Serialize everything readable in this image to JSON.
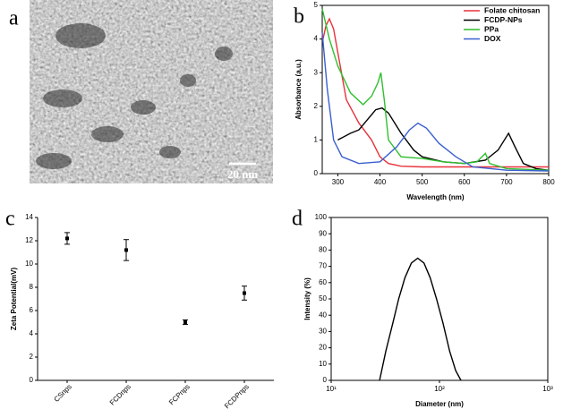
{
  "image_panel": {
    "panel_label": "a",
    "scale_label": "20 nm"
  },
  "chart_data": [
    {
      "type": "line",
      "panel_label": "b",
      "x_label": "Wavelength (nm)",
      "y_label": "Absorbance (a.u.)",
      "xlim": [
        263,
        800
      ],
      "xticks": [
        300,
        400,
        500,
        600,
        700,
        800
      ],
      "ylim": [
        0,
        5
      ],
      "yticks": [
        0,
        1,
        2,
        3,
        4,
        5
      ],
      "legend": "upper right",
      "series": [
        {
          "name": "Folate chitosan",
          "color": "#e8313a",
          "x": [
            265,
            272,
            280,
            290,
            300,
            320,
            350,
            380,
            400,
            420,
            450,
            500,
            600,
            700,
            800
          ],
          "values": [
            4.0,
            4.4,
            4.6,
            4.3,
            3.6,
            2.2,
            1.5,
            1.0,
            0.5,
            0.3,
            0.22,
            0.2,
            0.2,
            0.2,
            0.2
          ]
        },
        {
          "name": "FCDP-NPs",
          "color": "#000000",
          "x": [
            300,
            330,
            350,
            370,
            390,
            405,
            420,
            450,
            480,
            500,
            550,
            600,
            650,
            680,
            705,
            720,
            740,
            770,
            800
          ],
          "values": [
            1.0,
            1.2,
            1.3,
            1.6,
            1.9,
            1.95,
            1.8,
            1.2,
            0.7,
            0.5,
            0.35,
            0.3,
            0.4,
            0.7,
            1.2,
            0.8,
            0.3,
            0.15,
            0.1
          ]
        },
        {
          "name": "PPa",
          "color": "#2fc02f",
          "x": [
            263,
            280,
            300,
            330,
            360,
            380,
            395,
            402,
            410,
            420,
            450,
            500,
            550,
            600,
            630,
            650,
            660,
            700,
            800
          ],
          "values": [
            4.9,
            4.0,
            3.2,
            2.4,
            2.05,
            2.3,
            2.7,
            3.0,
            2.2,
            1.0,
            0.5,
            0.45,
            0.35,
            0.3,
            0.35,
            0.6,
            0.3,
            0.15,
            0.1
          ]
        },
        {
          "name": "DOX",
          "color": "#3a5fd0",
          "x": [
            263,
            275,
            290,
            310,
            350,
            400,
            440,
            470,
            490,
            510,
            540,
            580,
            620,
            700,
            800
          ],
          "values": [
            4.2,
            2.5,
            1.0,
            0.5,
            0.3,
            0.35,
            0.8,
            1.3,
            1.5,
            1.35,
            0.9,
            0.5,
            0.2,
            0.1,
            0.08
          ]
        }
      ]
    },
    {
      "type": "errorbar",
      "panel_label": "c",
      "y_label": "Zeta Potential(mV)",
      "categories": [
        "CSnps",
        "FCDnps",
        "FCPnps",
        "FCDPnps"
      ],
      "values": [
        12.2,
        11.2,
        5.0,
        7.5
      ],
      "errors": [
        0.5,
        0.9,
        0.2,
        0.6
      ],
      "color": "#000000",
      "ylim": [
        0,
        14
      ],
      "yticks": [
        0,
        2,
        4,
        6,
        8,
        10,
        12,
        14
      ]
    },
    {
      "type": "line",
      "panel_label": "d",
      "x_label": "Diameter (nm)",
      "y_label": "Intensity (%)",
      "xscale": "log",
      "xlim": [
        10,
        1000
      ],
      "xticks": [
        {
          "value": 10,
          "label": "10¹"
        },
        {
          "value": 100,
          "label": "10²"
        },
        {
          "value": 1000,
          "label": "10³"
        }
      ],
      "ylim": [
        0,
        100
      ],
      "yticks": [
        0,
        10,
        20,
        30,
        40,
        50,
        60,
        70,
        80,
        90,
        100
      ],
      "color": "#000000",
      "x": [
        28,
        32,
        37,
        42,
        48,
        55,
        63,
        72,
        82,
        94,
        108,
        124,
        141,
        158
      ],
      "values": [
        0,
        18,
        35,
        50,
        63,
        72,
        75,
        72,
        63,
        50,
        35,
        18,
        6,
        0
      ]
    }
  ]
}
